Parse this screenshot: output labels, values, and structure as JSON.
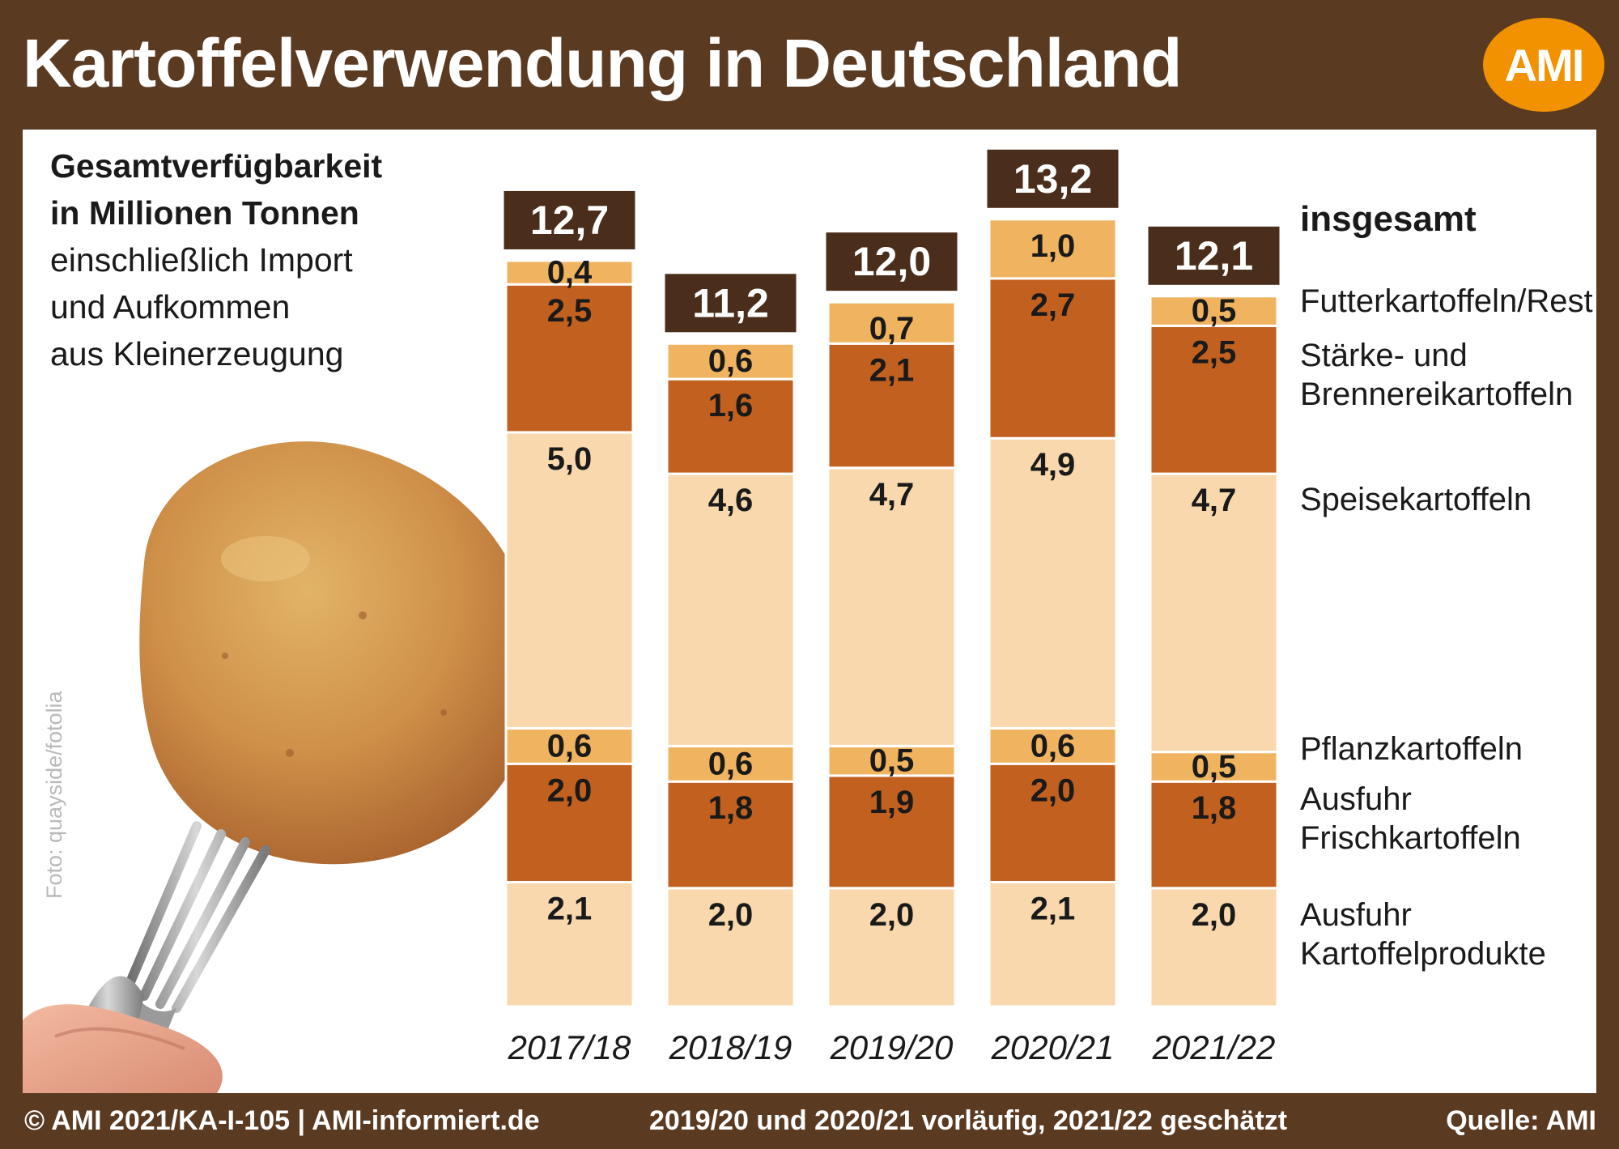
{
  "header": {
    "title": "Kartoffelverwendung in Deutschland",
    "logo_text": "AMI"
  },
  "subtitle": {
    "line1": "Gesamtverfügbarkeit",
    "line2": "in Millionen Tonnen",
    "line3": "einschließlich Import",
    "line4": "und Aufkommen",
    "line5": "aus Kleinerzeugung"
  },
  "photo_credit": "Foto: quayside/fotolia",
  "footer": {
    "left": "© AMI 2021/KA-I-105 | AMI-informiert.de",
    "center": "2019/20 und 2020/21 vorläufig, 2021/22 geschätzt",
    "right": "Quelle: AMI"
  },
  "colors": {
    "background": "#5b3a22",
    "light": "#f8d8ac",
    "medium": "#f0b460",
    "dark": "#c1601f",
    "total_box": "#4a2e1b",
    "logo": "#f39200"
  },
  "chart_data": {
    "type": "bar",
    "stacked": true,
    "categories": [
      "2017/18",
      "2018/19",
      "2019/20",
      "2020/21",
      "2021/22"
    ],
    "series": [
      {
        "name": "Ausfuhr Kartoffelprodukte",
        "values": [
          2.1,
          2.0,
          2.0,
          2.1,
          2.0
        ],
        "color": "#f8d8ac"
      },
      {
        "name": "Ausfuhr Frischkartoffeln",
        "values": [
          2.0,
          1.8,
          1.9,
          2.0,
          1.8
        ],
        "color": "#c1601f"
      },
      {
        "name": "Pflanzkartoffeln",
        "values": [
          0.6,
          0.6,
          0.5,
          0.6,
          0.5
        ],
        "color": "#f0b460"
      },
      {
        "name": "Speisekartoffeln",
        "values": [
          5.0,
          4.6,
          4.7,
          4.9,
          4.7
        ],
        "color": "#f8d8ac"
      },
      {
        "name": "Stärke- und Brennereikartoffeln",
        "values": [
          2.5,
          1.6,
          2.1,
          2.7,
          2.5
        ],
        "color": "#c1601f"
      },
      {
        "name": "Futterkartoffeln/Rest",
        "values": [
          0.4,
          0.6,
          0.7,
          1.0,
          0.5
        ],
        "color": "#f0b460"
      }
    ],
    "value_labels": [
      [
        "2,1",
        "2,0",
        "2,0",
        "2,1",
        "2,0"
      ],
      [
        "2,0",
        "1,8",
        "1,9",
        "2,0",
        "1,8"
      ],
      [
        "0,6",
        "0,6",
        "0,5",
        "0,6",
        "0,5"
      ],
      [
        "5,0",
        "4,6",
        "4,7",
        "4,9",
        "4,7"
      ],
      [
        "2,5",
        "1,6",
        "2,1",
        "2,7",
        "2,5"
      ],
      [
        "0,4",
        "0,6",
        "0,7",
        "1,0",
        "0,5"
      ]
    ],
    "totals": [
      12.7,
      11.2,
      12.0,
      13.2,
      12.1
    ],
    "total_labels": [
      "12,7",
      "11,2",
      "12,0",
      "13,2",
      "12,1"
    ],
    "total_label": "insgesamt",
    "legend": [
      {
        "lines": [
          "Futterkartoffeln/Rest"
        ],
        "series": 5
      },
      {
        "lines": [
          "Stärke- und",
          "Brennereikartoffeln"
        ],
        "series": 4
      },
      {
        "lines": [
          "Speisekartoffeln"
        ],
        "series": 3
      },
      {
        "lines": [
          "Pflanzkartoffeln"
        ],
        "series": 2
      },
      {
        "lines": [
          "Ausfuhr",
          "Frischkartoffeln"
        ],
        "series": 1
      },
      {
        "lines": [
          "Ausfuhr",
          "Kartoffelprodukte"
        ],
        "series": 0
      }
    ],
    "legend_placement": "right",
    "grid": false
  }
}
